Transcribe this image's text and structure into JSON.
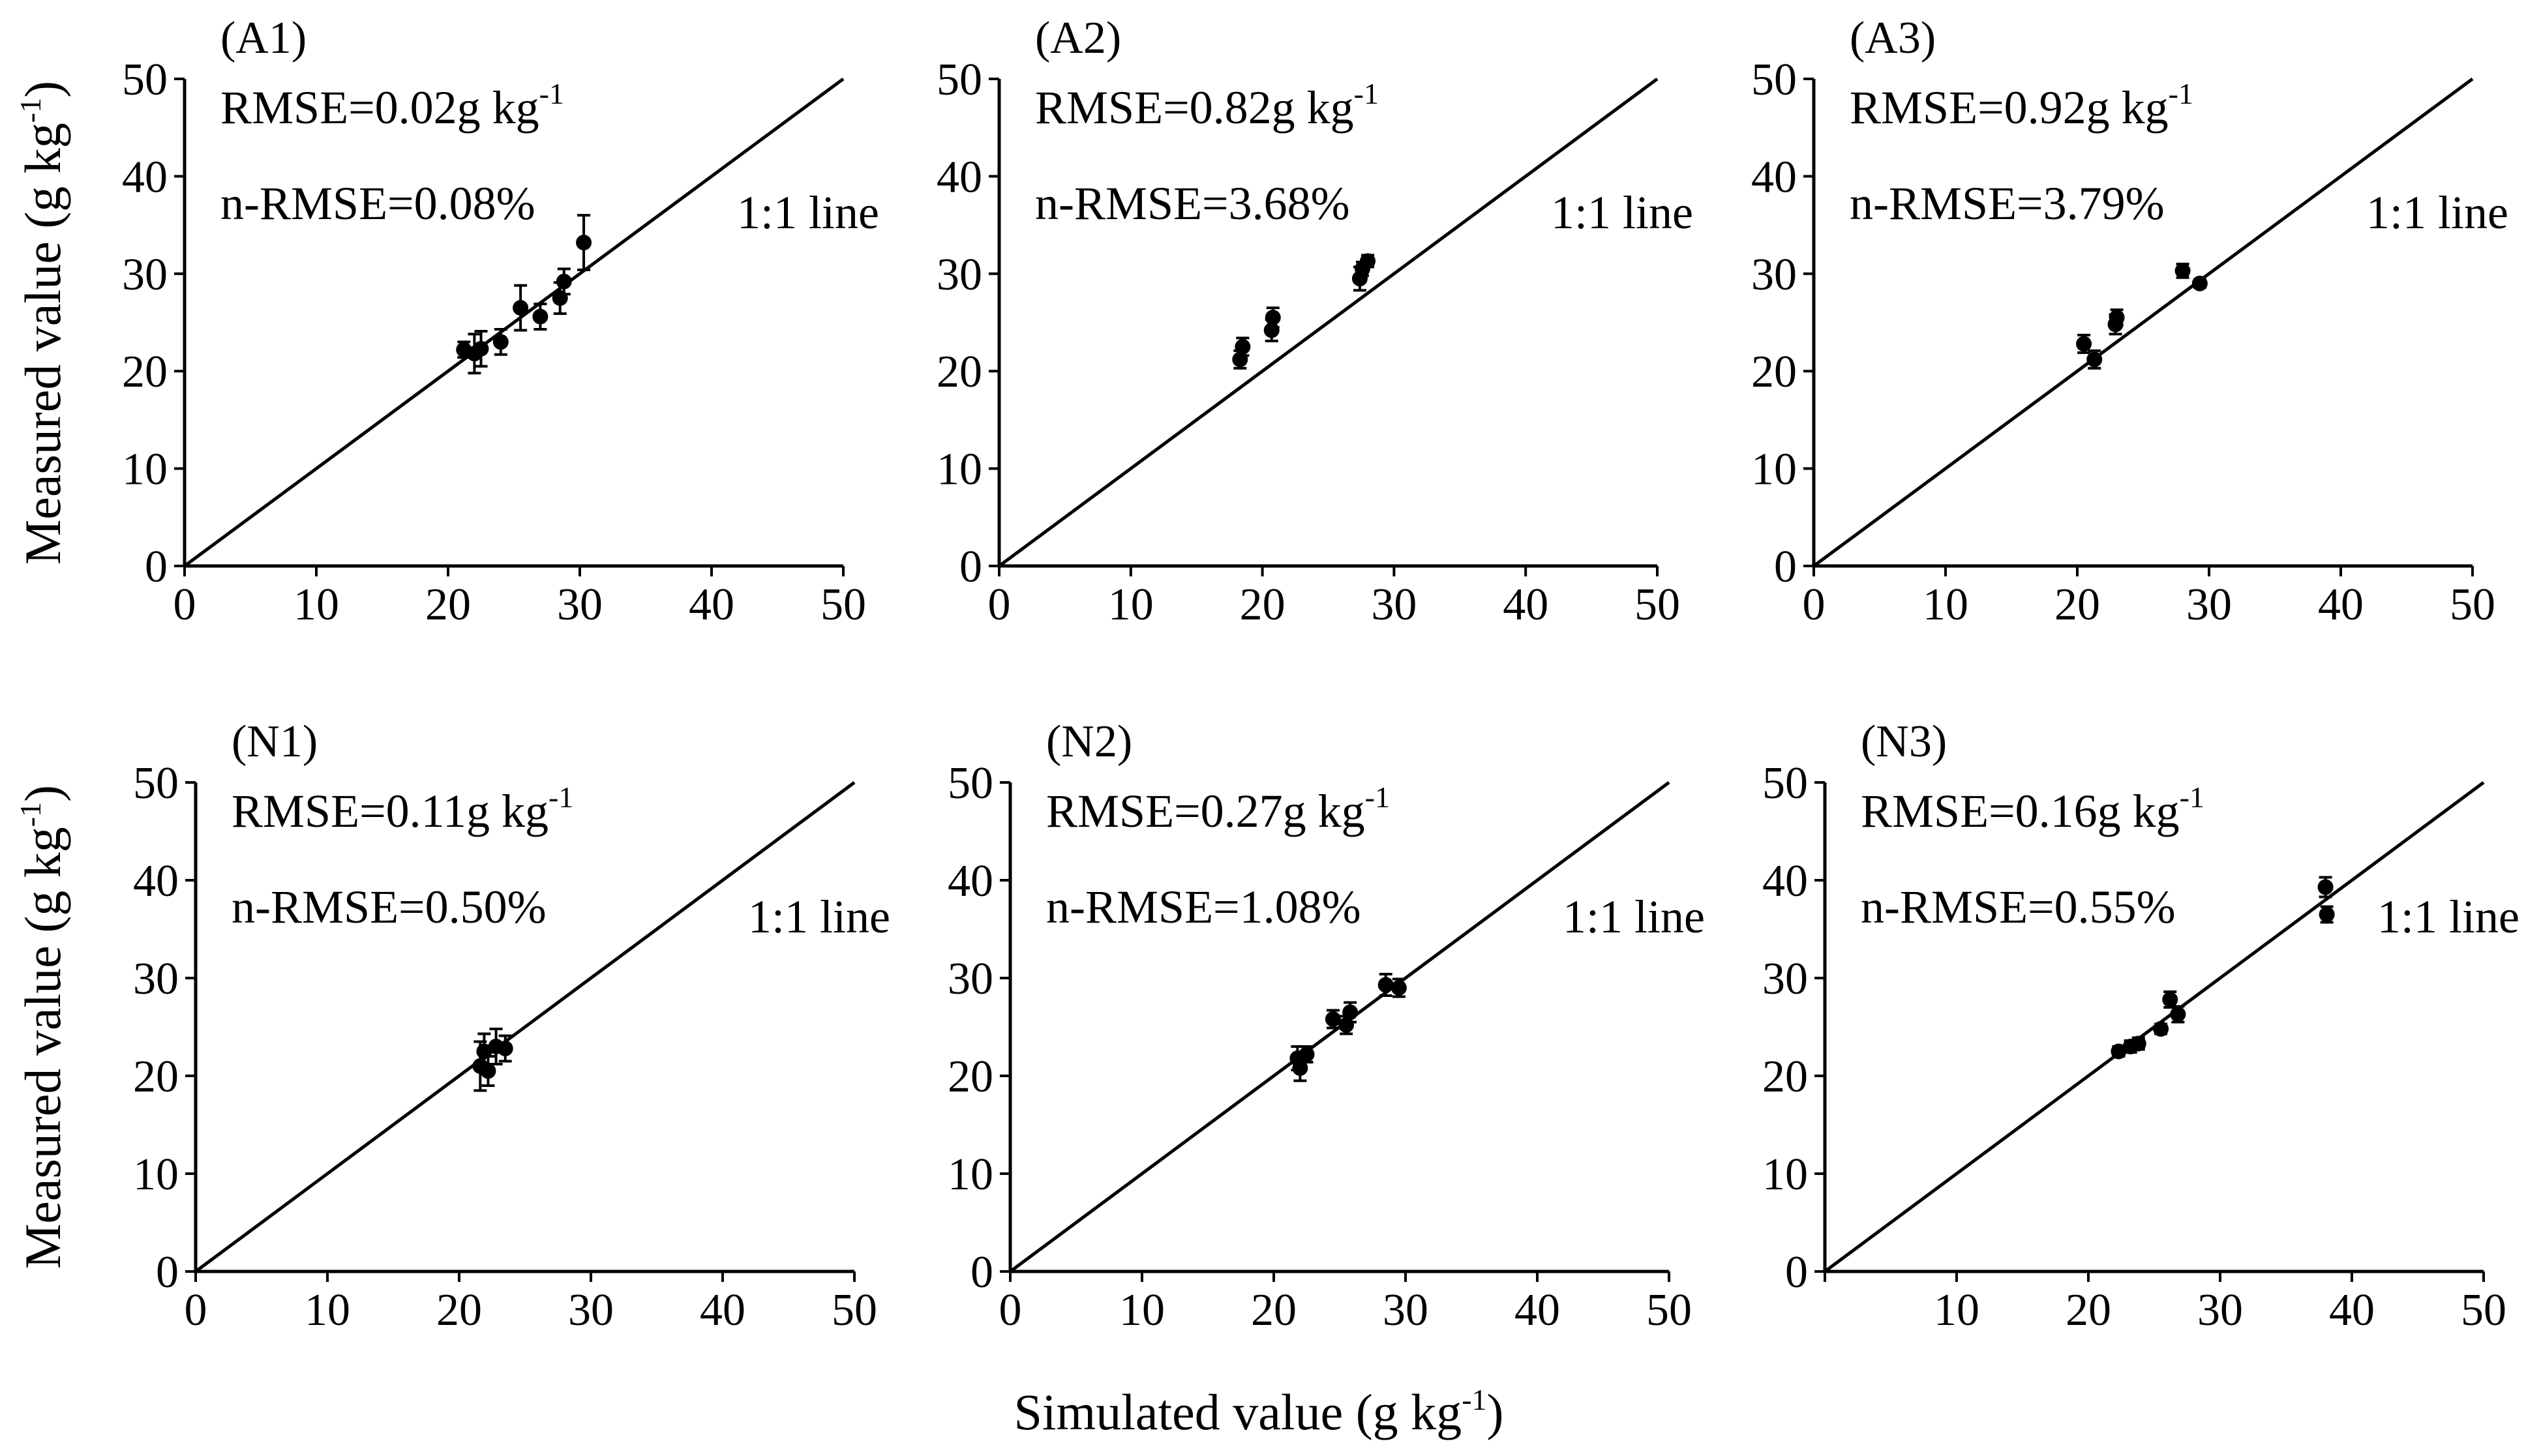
{
  "figure": {
    "y_axis_title": "Measured value (g kg",
    "x_axis_title": "Simulated value (g kg",
    "unit_superscript": "-1"
  },
  "chart_data": [
    {
      "type": "scatter",
      "id": "A1",
      "label": "(A1)",
      "rmse_text": "RMSE=0.02g kg",
      "rmse_sup": "-1",
      "nrmse_text": "n-RMSE=0.08%",
      "line_label": "1:1 line",
      "xlim": [
        0,
        50
      ],
      "ylim": [
        0,
        50
      ],
      "x_ticks": [
        "0",
        "10",
        "20",
        "30",
        "40",
        "50"
      ],
      "y_ticks": [
        "0",
        "10",
        "20",
        "30",
        "40",
        "50"
      ],
      "points": [
        {
          "x": 21.2,
          "y": 22.2,
          "err": 0.8
        },
        {
          "x": 22.0,
          "y": 21.8,
          "err": 2.0
        },
        {
          "x": 22.5,
          "y": 22.3,
          "err": 1.8
        },
        {
          "x": 24.0,
          "y": 23.0,
          "err": 1.3
        },
        {
          "x": 25.5,
          "y": 26.5,
          "err": 2.3
        },
        {
          "x": 27.0,
          "y": 25.6,
          "err": 1.3
        },
        {
          "x": 28.5,
          "y": 27.5,
          "err": 1.6
        },
        {
          "x": 28.8,
          "y": 29.2,
          "err": 1.3
        },
        {
          "x": 30.3,
          "y": 33.2,
          "err": 2.8
        }
      ]
    },
    {
      "type": "scatter",
      "id": "A2",
      "label": "(A2)",
      "rmse_text": "RMSE=0.82g kg",
      "rmse_sup": "-1",
      "nrmse_text": "n-RMSE=3.68%",
      "line_label": "1:1 line",
      "xlim": [
        0,
        50
      ],
      "ylim": [
        0,
        50
      ],
      "x_ticks": [
        "0",
        "10",
        "20",
        "30",
        "40",
        "50"
      ],
      "y_ticks": [
        "0",
        "10",
        "20",
        "30",
        "40",
        "50"
      ],
      "points": [
        {
          "x": 18.3,
          "y": 21.2,
          "err": 0.9
        },
        {
          "x": 18.5,
          "y": 22.5,
          "err": 0.9
        },
        {
          "x": 20.7,
          "y": 24.2,
          "err": 1.1
        },
        {
          "x": 20.8,
          "y": 25.5,
          "err": 1.0
        },
        {
          "x": 27.4,
          "y": 29.5,
          "err": 1.2
        },
        {
          "x": 27.6,
          "y": 30.5,
          "err": 0.7
        },
        {
          "x": 28.0,
          "y": 31.3,
          "err": 0.6
        }
      ]
    },
    {
      "type": "scatter",
      "id": "A3",
      "label": "(A3)",
      "rmse_text": "RMSE=0.92g kg",
      "rmse_sup": "-1",
      "nrmse_text": "n-RMSE=3.79%",
      "line_label": "1:1 line",
      "xlim": [
        0,
        50
      ],
      "ylim": [
        0,
        50
      ],
      "x_ticks": [
        "0",
        "10",
        "20",
        "30",
        "40",
        "50"
      ],
      "y_ticks": [
        "0",
        "10",
        "20",
        "30",
        "40",
        "50"
      ],
      "points": [
        {
          "x": 20.5,
          "y": 22.8,
          "err": 0.9
        },
        {
          "x": 21.3,
          "y": 21.2,
          "err": 0.9
        },
        {
          "x": 22.9,
          "y": 24.8,
          "err": 1.0
        },
        {
          "x": 23.0,
          "y": 25.5,
          "err": 0.8
        },
        {
          "x": 28.0,
          "y": 30.3,
          "err": 0.7
        },
        {
          "x": 29.3,
          "y": 29.0,
          "err": 0.4
        }
      ]
    },
    {
      "type": "scatter",
      "id": "N1",
      "label": "(N1)",
      "rmse_text": "RMSE=0.11g kg",
      "rmse_sup": "-1",
      "nrmse_text": "n-RMSE=0.50%",
      "line_label": "1:1 line",
      "xlim": [
        0,
        50
      ],
      "ylim": [
        0,
        50
      ],
      "x_ticks": [
        "0",
        "10",
        "20",
        "30",
        "40",
        "50"
      ],
      "y_ticks": [
        "0",
        "10",
        "20",
        "30",
        "40",
        "50"
      ],
      "points": [
        {
          "x": 21.6,
          "y": 21.0,
          "err": 2.5
        },
        {
          "x": 21.9,
          "y": 22.5,
          "err": 1.8
        },
        {
          "x": 22.2,
          "y": 20.5,
          "err": 1.5
        },
        {
          "x": 22.8,
          "y": 23.0,
          "err": 1.8
        },
        {
          "x": 23.5,
          "y": 22.8,
          "err": 1.3
        }
      ]
    },
    {
      "type": "scatter",
      "id": "N2",
      "label": "(N2)",
      "rmse_text": "RMSE=0.27g kg",
      "rmse_sup": "-1",
      "nrmse_text": "n-RMSE=1.08%",
      "line_label": "1:1 line",
      "xlim": [
        0,
        50
      ],
      "ylim": [
        0,
        50
      ],
      "x_ticks": [
        "0",
        "10",
        "20",
        "30",
        "40",
        "50"
      ],
      "y_ticks": [
        "0",
        "10",
        "20",
        "30",
        "40",
        "50"
      ],
      "points": [
        {
          "x": 21.8,
          "y": 21.8,
          "err": 1.2
        },
        {
          "x": 22.0,
          "y": 20.8,
          "err": 1.3
        },
        {
          "x": 22.5,
          "y": 22.2,
          "err": 0.8
        },
        {
          "x": 24.5,
          "y": 25.8,
          "err": 0.9
        },
        {
          "x": 25.5,
          "y": 25.2,
          "err": 0.9
        },
        {
          "x": 25.8,
          "y": 26.5,
          "err": 1.0
        },
        {
          "x": 28.5,
          "y": 29.3,
          "err": 1.1
        },
        {
          "x": 29.5,
          "y": 29.0,
          "err": 0.9
        }
      ]
    },
    {
      "type": "scatter",
      "id": "N3",
      "label": "(N3)",
      "rmse_text": "RMSE=0.16g kg",
      "rmse_sup": "-1",
      "nrmse_text": "n-RMSE=0.55%",
      "line_label": "1:1 line",
      "xlim": [
        0,
        50
      ],
      "ylim": [
        0,
        50
      ],
      "x_ticks": [
        "0",
        "10",
        "20",
        "30",
        "40",
        "50"
      ],
      "y_ticks": [
        "0",
        "10",
        "20",
        "30",
        "40",
        "50"
      ],
      "x_tick_labels_shown": [
        "10",
        "20",
        "30",
        "40",
        "50"
      ],
      "points": [
        {
          "x": 22.3,
          "y": 22.5,
          "err": 0.5
        },
        {
          "x": 23.2,
          "y": 23.0,
          "err": 0.6
        },
        {
          "x": 23.8,
          "y": 23.3,
          "err": 0.6
        },
        {
          "x": 25.5,
          "y": 24.8,
          "err": 0.5
        },
        {
          "x": 26.2,
          "y": 27.8,
          "err": 0.8
        },
        {
          "x": 26.8,
          "y": 26.3,
          "err": 0.8
        },
        {
          "x": 38.0,
          "y": 39.3,
          "err": 1.0
        },
        {
          "x": 38.1,
          "y": 36.5,
          "err": 0.8
        }
      ]
    }
  ]
}
